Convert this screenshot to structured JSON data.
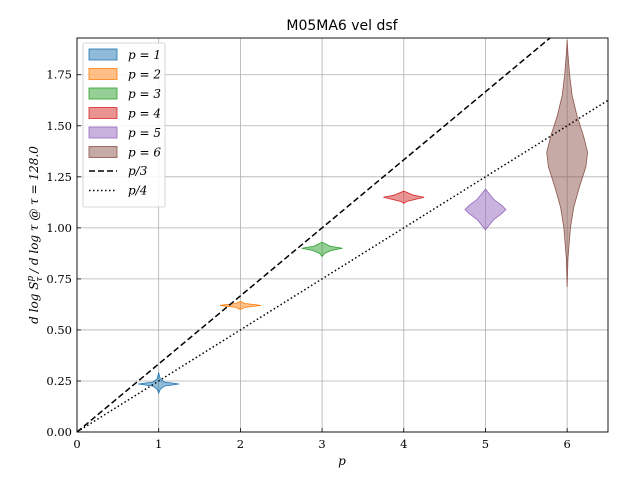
{
  "chart_data": {
    "type": "violin",
    "title": "M05MA6 vel dsf",
    "xlabel": "p",
    "ylabel": "d log S_τ^p / d log τ @ τ = 128.0",
    "xlim": [
      0,
      6.5
    ],
    "ylim": [
      0,
      1.93
    ],
    "xticks": [
      0,
      1,
      2,
      3,
      4,
      5,
      6
    ],
    "xtick_labels": [
      "0",
      "1",
      "2",
      "3",
      "4",
      "5",
      "6"
    ],
    "yticks": [
      0.0,
      0.25,
      0.5,
      0.75,
      1.0,
      1.25,
      1.5,
      1.75
    ],
    "ytick_labels": [
      "0.00",
      "0.25",
      "0.50",
      "0.75",
      "1.00",
      "1.25",
      "1.50",
      "1.75"
    ],
    "grid": true,
    "legend_position": "upper-left",
    "series": [
      {
        "name": "p = 1",
        "x": 1,
        "center": 0.235,
        "min": 0.19,
        "max": 0.29,
        "max_halfwidth": 0.25,
        "color": "#1f77b4",
        "profile": [
          [
            0.19,
            0.0
          ],
          [
            0.21,
            0.02
          ],
          [
            0.225,
            0.07
          ],
          [
            0.235,
            0.25
          ],
          [
            0.245,
            0.07
          ],
          [
            0.26,
            0.02
          ],
          [
            0.29,
            0.0
          ]
        ]
      },
      {
        "name": "p = 2",
        "x": 2,
        "center": 0.62,
        "min": 0.6,
        "max": 0.64,
        "max_halfwidth": 0.25,
        "color": "#ff7f0e",
        "profile": [
          [
            0.6,
            0.0
          ],
          [
            0.61,
            0.05
          ],
          [
            0.62,
            0.25
          ],
          [
            0.63,
            0.05
          ],
          [
            0.64,
            0.0
          ]
        ]
      },
      {
        "name": "p = 3",
        "x": 3,
        "center": 0.9,
        "min": 0.86,
        "max": 0.93,
        "max_halfwidth": 0.25,
        "color": "#2ca02c",
        "profile": [
          [
            0.86,
            0.0
          ],
          [
            0.875,
            0.03
          ],
          [
            0.89,
            0.12
          ],
          [
            0.9,
            0.25
          ],
          [
            0.91,
            0.1
          ],
          [
            0.93,
            0.0
          ]
        ]
      },
      {
        "name": "p = 4",
        "x": 4,
        "center": 1.15,
        "min": 1.12,
        "max": 1.18,
        "max_halfwidth": 0.25,
        "color": "#d62728",
        "profile": [
          [
            1.12,
            0.0
          ],
          [
            1.13,
            0.04
          ],
          [
            1.145,
            0.2
          ],
          [
            1.15,
            0.25
          ],
          [
            1.16,
            0.12
          ],
          [
            1.18,
            0.0
          ]
        ]
      },
      {
        "name": "p = 5",
        "x": 5,
        "center": 1.09,
        "min": 0.99,
        "max": 1.19,
        "max_halfwidth": 0.25,
        "color": "#9467bd",
        "profile": [
          [
            0.99,
            0.0
          ],
          [
            1.01,
            0.04
          ],
          [
            1.04,
            0.1
          ],
          [
            1.07,
            0.2
          ],
          [
            1.09,
            0.25
          ],
          [
            1.11,
            0.2
          ],
          [
            1.14,
            0.1
          ],
          [
            1.17,
            0.04
          ],
          [
            1.19,
            0.0
          ]
        ]
      },
      {
        "name": "p = 6",
        "x": 6,
        "center": 1.37,
        "min": 0.71,
        "max": 1.92,
        "max_halfwidth": 0.25,
        "color": "#8c564b",
        "profile": [
          [
            0.71,
            0.0
          ],
          [
            0.85,
            0.01
          ],
          [
            1.0,
            0.04
          ],
          [
            1.1,
            0.08
          ],
          [
            1.2,
            0.15
          ],
          [
            1.3,
            0.23
          ],
          [
            1.37,
            0.25
          ],
          [
            1.45,
            0.2
          ],
          [
            1.55,
            0.12
          ],
          [
            1.65,
            0.06
          ],
          [
            1.75,
            0.03
          ],
          [
            1.85,
            0.01
          ],
          [
            1.92,
            0.0
          ]
        ]
      }
    ],
    "lines": [
      {
        "name": "p/3",
        "slope": 0.3333333,
        "style": "dashed",
        "color": "#000000"
      },
      {
        "name": "p/4",
        "slope": 0.25,
        "style": "dotted",
        "color": "#000000"
      }
    ]
  }
}
